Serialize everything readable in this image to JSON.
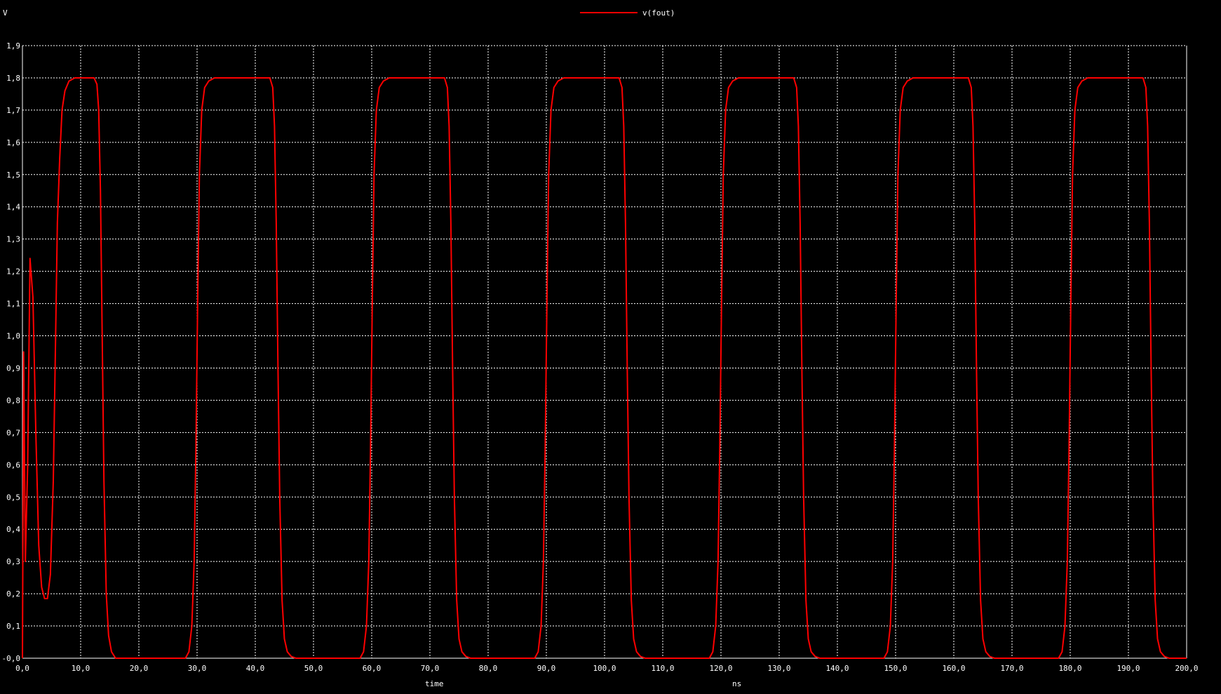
{
  "chart_data": {
    "type": "line",
    "ylabel": "V",
    "xlabel": "time",
    "xunit": "ns",
    "xlim": [
      0,
      200
    ],
    "ylim": [
      0,
      1.9
    ],
    "grid": true,
    "legend_position": "top-center",
    "x_ticks": [
      "0,0",
      "10,0",
      "20,0",
      "30,0",
      "40,0",
      "50,0",
      "60,0",
      "70,0",
      "80,0",
      "90,0",
      "100,0",
      "110,0",
      "120,0",
      "130,0",
      "140,0",
      "150,0",
      "160,0",
      "170,0",
      "180,0",
      "190,0",
      "200,0"
    ],
    "y_ticks": [
      "-0,0",
      "0,1",
      "0,2",
      "0,3",
      "0,4",
      "0,5",
      "0,6",
      "0,7",
      "0,8",
      "0,9",
      "1,0",
      "1,1",
      "1,2",
      "1,3",
      "1,4",
      "1,5",
      "1,6",
      "1,7",
      "1,8",
      "1,9"
    ],
    "series": [
      {
        "name": "v(fout)",
        "color": "#ff0000",
        "x": [
          0,
          0.2,
          0.5,
          0.9,
          1.3,
          1.8,
          2.3,
          2.8,
          3.3,
          3.8,
          4.3,
          4.8,
          5.3,
          5.7,
          6.0,
          6.4,
          6.8,
          7.3,
          8.0,
          9.0,
          10.0,
          12.3,
          12.8,
          13.1,
          13.4,
          13.7,
          14.0,
          14.4,
          14.8,
          15.3,
          16.0,
          17.0,
          28.0,
          28.6,
          29.1,
          29.5,
          29.8,
          30.1,
          30.4,
          30.8,
          31.3,
          32.0,
          33.0,
          42.5,
          43.0,
          43.3,
          43.6,
          43.9,
          44.2,
          44.6,
          45.0,
          45.5,
          46.2,
          47.0,
          58.0,
          58.6,
          59.1,
          59.5,
          59.8,
          60.1,
          60.4,
          60.8,
          61.3,
          62.0,
          63.0,
          72.5,
          73.0,
          73.3,
          73.6,
          73.9,
          74.2,
          74.6,
          75.0,
          75.5,
          76.2,
          77.0,
          88.0,
          88.6,
          89.1,
          89.5,
          89.8,
          90.1,
          90.4,
          90.8,
          91.3,
          92.0,
          93.0,
          102.5,
          103.0,
          103.3,
          103.6,
          103.9,
          104.2,
          104.6,
          105.0,
          105.5,
          106.2,
          107.0,
          118.0,
          118.6,
          119.1,
          119.5,
          119.8,
          120.1,
          120.4,
          120.8,
          121.3,
          122.0,
          123.0,
          132.5,
          133.0,
          133.3,
          133.6,
          133.9,
          134.2,
          134.6,
          135.0,
          135.5,
          136.2,
          137.0,
          148.0,
          148.6,
          149.1,
          149.5,
          149.8,
          150.1,
          150.4,
          150.8,
          151.3,
          152.0,
          153.0,
          162.5,
          163.0,
          163.3,
          163.6,
          163.9,
          164.2,
          164.6,
          165.0,
          165.5,
          166.2,
          167.0,
          178.0,
          178.6,
          179.1,
          179.5,
          179.8,
          180.1,
          180.4,
          180.8,
          181.3,
          182.0,
          183.0,
          192.5,
          193.0,
          193.3,
          193.6,
          193.9,
          194.2,
          194.6,
          195.0,
          195.5,
          196.2,
          197.0,
          200.0
        ],
        "values": [
          0.0,
          0.95,
          0.3,
          0.6,
          1.24,
          1.12,
          0.7,
          0.35,
          0.22,
          0.185,
          0.185,
          0.26,
          0.55,
          1.0,
          1.35,
          1.55,
          1.7,
          1.76,
          1.79,
          1.8,
          1.8,
          1.8,
          1.78,
          1.7,
          1.45,
          1.0,
          0.55,
          0.2,
          0.07,
          0.02,
          0.0,
          0.0,
          0.0,
          0.02,
          0.1,
          0.3,
          0.65,
          1.1,
          1.5,
          1.7,
          1.77,
          1.79,
          1.8,
          1.8,
          1.77,
          1.65,
          1.35,
          0.9,
          0.5,
          0.18,
          0.06,
          0.02,
          0.005,
          0.0,
          0.0,
          0.02,
          0.1,
          0.3,
          0.65,
          1.1,
          1.5,
          1.7,
          1.77,
          1.79,
          1.8,
          1.8,
          1.77,
          1.65,
          1.35,
          0.9,
          0.5,
          0.18,
          0.06,
          0.02,
          0.005,
          0.0,
          0.0,
          0.02,
          0.1,
          0.3,
          0.65,
          1.1,
          1.5,
          1.7,
          1.77,
          1.79,
          1.8,
          1.8,
          1.77,
          1.65,
          1.35,
          0.9,
          0.5,
          0.18,
          0.06,
          0.02,
          0.005,
          0.0,
          0.0,
          0.02,
          0.1,
          0.3,
          0.65,
          1.1,
          1.5,
          1.7,
          1.77,
          1.79,
          1.8,
          1.8,
          1.77,
          1.65,
          1.35,
          0.9,
          0.5,
          0.18,
          0.06,
          0.02,
          0.005,
          0.0,
          0.0,
          0.02,
          0.1,
          0.3,
          0.65,
          1.1,
          1.5,
          1.7,
          1.77,
          1.79,
          1.8,
          1.8,
          1.77,
          1.65,
          1.35,
          0.9,
          0.5,
          0.18,
          0.06,
          0.02,
          0.005,
          0.0,
          0.0,
          0.02,
          0.1,
          0.3,
          0.65,
          1.1,
          1.5,
          1.7,
          1.77,
          1.79,
          1.8,
          1.8,
          1.77,
          1.65,
          1.35,
          0.9,
          0.5,
          0.18,
          0.06,
          0.02,
          0.005,
          0.0,
          0.0
        ]
      }
    ]
  }
}
